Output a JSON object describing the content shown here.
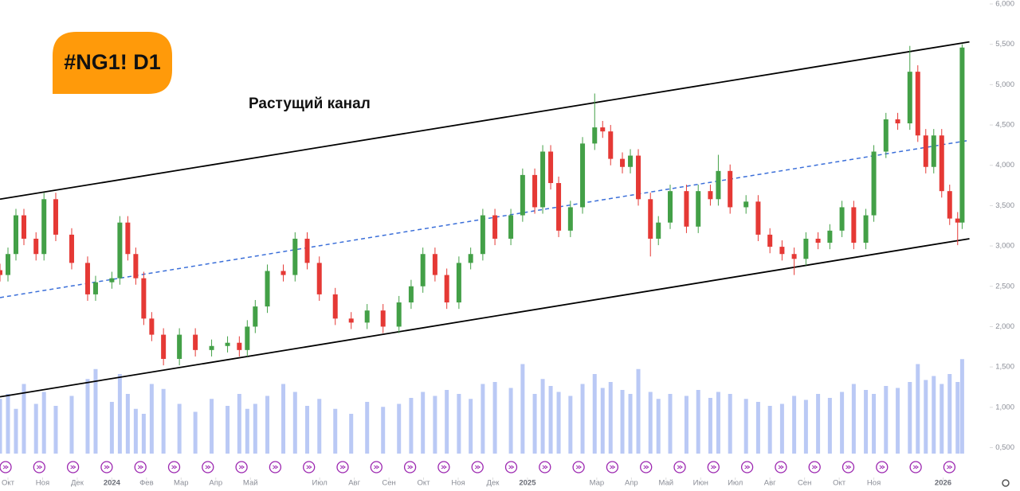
{
  "chart_data": {
    "type": "candlestick",
    "symbol_label": "#NG1! D1",
    "annotation": "Растущий канал",
    "up_color": "#43a047",
    "down_color": "#e53935",
    "candles": [
      [
        -0.23,
        2.7,
        2.78,
        2.56,
        2.64
      ],
      [
        0,
        2.64,
        2.98,
        2.56,
        2.9
      ],
      [
        0.23,
        2.9,
        3.46,
        2.82,
        3.38
      ],
      [
        0.46,
        3.38,
        3.46,
        3.01,
        3.09
      ],
      [
        0.81,
        3.09,
        3.17,
        2.82,
        2.9
      ],
      [
        1.04,
        2.9,
        3.66,
        2.82,
        3.58
      ],
      [
        1.38,
        3.58,
        3.66,
        3.06,
        3.14
      ],
      [
        1.84,
        3.14,
        3.22,
        2.71,
        2.79
      ],
      [
        2.3,
        2.79,
        2.87,
        2.32,
        2.4
      ],
      [
        2.53,
        2.4,
        2.63,
        2.32,
        2.55
      ],
      [
        3.0,
        2.55,
        2.68,
        2.47,
        2.6
      ],
      [
        3.23,
        2.6,
        3.37,
        2.52,
        3.29
      ],
      [
        3.46,
        3.29,
        3.37,
        2.82,
        2.9
      ],
      [
        3.69,
        2.9,
        2.98,
        2.52,
        2.6
      ],
      [
        3.92,
        2.6,
        2.68,
        2.02,
        2.1
      ],
      [
        4.15,
        2.1,
        2.18,
        1.82,
        1.9
      ],
      [
        4.49,
        1.9,
        1.98,
        1.52,
        1.6
      ],
      [
        4.95,
        1.6,
        1.98,
        1.52,
        1.9
      ],
      [
        5.41,
        1.9,
        1.98,
        1.63,
        1.71
      ],
      [
        5.88,
        1.71,
        1.84,
        1.63,
        1.76
      ],
      [
        6.34,
        1.76,
        1.88,
        1.68,
        1.8
      ],
      [
        6.68,
        1.8,
        1.88,
        1.63,
        1.71
      ],
      [
        6.91,
        1.71,
        2.08,
        1.63,
        2.0
      ],
      [
        7.14,
        2.0,
        2.33,
        1.92,
        2.25
      ],
      [
        7.49,
        2.25,
        2.77,
        2.17,
        2.69
      ],
      [
        7.95,
        2.69,
        2.77,
        2.56,
        2.64
      ],
      [
        8.29,
        2.64,
        3.17,
        2.56,
        3.09
      ],
      [
        8.64,
        3.09,
        3.17,
        2.71,
        2.79
      ],
      [
        8.99,
        2.79,
        2.87,
        2.32,
        2.4
      ],
      [
        9.45,
        2.4,
        2.48,
        2.02,
        2.1
      ],
      [
        9.91,
        2.1,
        2.18,
        1.97,
        2.05
      ],
      [
        10.37,
        2.05,
        2.28,
        1.97,
        2.2
      ],
      [
        10.83,
        2.2,
        2.28,
        1.92,
        2.0
      ],
      [
        11.29,
        2.0,
        2.38,
        1.92,
        2.3
      ],
      [
        11.64,
        2.3,
        2.58,
        2.22,
        2.5
      ],
      [
        11.98,
        2.5,
        2.98,
        2.42,
        2.9
      ],
      [
        12.33,
        2.9,
        2.98,
        2.56,
        2.64
      ],
      [
        12.67,
        2.64,
        2.72,
        2.22,
        2.3
      ],
      [
        13.02,
        2.3,
        2.87,
        2.22,
        2.79
      ],
      [
        13.36,
        2.79,
        2.98,
        2.71,
        2.9
      ],
      [
        13.71,
        2.9,
        3.46,
        2.82,
        3.38
      ],
      [
        14.06,
        3.38,
        3.46,
        3.01,
        3.09
      ],
      [
        14.52,
        3.09,
        3.46,
        3.01,
        3.38
      ],
      [
        14.86,
        3.38,
        3.96,
        3.3,
        3.88
      ],
      [
        15.21,
        3.88,
        3.96,
        3.4,
        3.48
      ],
      [
        15.44,
        3.48,
        4.25,
        3.4,
        4.17
      ],
      [
        15.67,
        4.17,
        4.25,
        3.7,
        3.78
      ],
      [
        15.9,
        3.78,
        3.86,
        3.11,
        3.19
      ],
      [
        16.24,
        3.19,
        3.56,
        3.11,
        3.48
      ],
      [
        16.59,
        3.48,
        4.35,
        3.4,
        4.27
      ],
      [
        16.94,
        4.27,
        4.89,
        4.19,
        4.47
      ],
      [
        17.17,
        4.47,
        4.55,
        4.34,
        4.42
      ],
      [
        17.4,
        4.42,
        4.5,
        4.0,
        4.08
      ],
      [
        17.74,
        4.08,
        4.16,
        3.9,
        3.98
      ],
      [
        17.97,
        3.98,
        4.2,
        3.9,
        4.12
      ],
      [
        18.2,
        4.12,
        4.2,
        3.5,
        3.58
      ],
      [
        18.55,
        3.58,
        3.66,
        2.87,
        3.09
      ],
      [
        18.78,
        3.09,
        3.37,
        3.01,
        3.29
      ],
      [
        19.12,
        3.29,
        3.76,
        3.21,
        3.68
      ],
      [
        19.59,
        3.68,
        3.76,
        3.16,
        3.24
      ],
      [
        19.93,
        3.24,
        3.76,
        3.16,
        3.68
      ],
      [
        20.28,
        3.68,
        3.76,
        3.5,
        3.58
      ],
      [
        20.51,
        3.58,
        4.13,
        3.5,
        3.93
      ],
      [
        20.85,
        3.93,
        4.01,
        3.4,
        3.48
      ],
      [
        21.31,
        3.48,
        3.63,
        3.4,
        3.55
      ],
      [
        21.66,
        3.55,
        3.63,
        3.06,
        3.14
      ],
      [
        22.0,
        3.14,
        3.22,
        2.91,
        2.99
      ],
      [
        22.35,
        2.99,
        3.07,
        2.82,
        2.9
      ],
      [
        22.7,
        2.9,
        2.98,
        2.64,
        2.84
      ],
      [
        23.04,
        2.84,
        3.17,
        2.76,
        3.09
      ],
      [
        23.39,
        3.09,
        3.17,
        2.96,
        3.04
      ],
      [
        23.73,
        3.04,
        3.27,
        2.96,
        3.19
      ],
      [
        24.08,
        3.19,
        3.56,
        3.11,
        3.48
      ],
      [
        24.42,
        3.48,
        3.56,
        2.96,
        3.04
      ],
      [
        24.77,
        3.04,
        3.46,
        2.96,
        3.38
      ],
      [
        25.0,
        3.38,
        4.25,
        3.3,
        4.17
      ],
      [
        25.35,
        4.17,
        4.65,
        4.09,
        4.57
      ],
      [
        25.69,
        4.57,
        4.65,
        4.44,
        4.52
      ],
      [
        26.04,
        4.52,
        5.48,
        4.44,
        5.16
      ],
      [
        26.27,
        5.16,
        5.24,
        4.29,
        4.37
      ],
      [
        26.5,
        4.37,
        4.45,
        3.9,
        3.98
      ],
      [
        26.73,
        3.98,
        4.45,
        3.9,
        4.37
      ],
      [
        26.96,
        4.37,
        4.45,
        3.6,
        3.68
      ],
      [
        27.19,
        3.68,
        3.76,
        3.26,
        3.34
      ],
      [
        27.42,
        3.34,
        3.42,
        3.01,
        3.29
      ],
      [
        27.55,
        3.29,
        5.5,
        3.21,
        5.46
      ]
    ],
    "volume": {
      "color": "#a9bcf2",
      "ylim": [
        0,
        100
      ],
      "values": [
        55,
        60,
        45,
        70,
        50,
        62,
        48,
        58,
        75,
        85,
        52,
        80,
        60,
        45,
        40,
        70,
        65,
        50,
        42,
        55,
        48,
        60,
        45,
        50,
        58,
        70,
        62,
        48,
        55,
        45,
        40,
        52,
        47,
        50,
        56,
        62,
        58,
        64,
        60,
        55,
        70,
        72,
        66,
        90,
        60,
        75,
        68,
        62,
        58,
        70,
        80,
        66,
        72,
        64,
        60,
        85,
        62,
        55,
        60,
        58,
        64,
        56,
        62,
        60,
        55,
        52,
        48,
        50,
        58,
        54,
        60,
        56,
        62,
        70,
        64,
        60,
        68,
        66,
        72,
        90,
        74,
        78,
        70,
        80,
        72,
        95
      ]
    },
    "channel": {
      "color": "#000000",
      "mid_color": "#3b6fd9",
      "upper": [
        [
          -0.23,
          3.58
        ],
        [
          27.76,
          5.53
        ]
      ],
      "lower": [
        [
          -0.23,
          1.13
        ],
        [
          27.76,
          3.09
        ]
      ],
      "middle": [
        [
          -0.23,
          2.36
        ],
        [
          27.76,
          4.31
        ]
      ]
    },
    "xlim": [
      -0.23,
      28.3
    ],
    "xticks": [
      {
        "value": 0,
        "label": "Окт"
      },
      {
        "value": 1,
        "label": "Ноя"
      },
      {
        "value": 2,
        "label": "Дек"
      },
      {
        "value": 3,
        "label": "2024"
      },
      {
        "value": 4,
        "label": "Фев"
      },
      {
        "value": 5,
        "label": "Мар"
      },
      {
        "value": 6,
        "label": "Апр"
      },
      {
        "value": 7,
        "label": "Май"
      },
      {
        "value": 9,
        "label": "Июл"
      },
      {
        "value": 10,
        "label": "Авг"
      },
      {
        "value": 11,
        "label": "Сен"
      },
      {
        "value": 12,
        "label": "Окт"
      },
      {
        "value": 13,
        "label": "Ноя"
      },
      {
        "value": 14,
        "label": "Дек"
      },
      {
        "value": 15,
        "label": "2025"
      },
      {
        "value": 17,
        "label": "Мар"
      },
      {
        "value": 18,
        "label": "Апр"
      },
      {
        "value": 19,
        "label": "Май"
      },
      {
        "value": 20,
        "label": "Июн"
      },
      {
        "value": 21,
        "label": "Июл"
      },
      {
        "value": 22,
        "label": "Авг"
      },
      {
        "value": 23,
        "label": "Сен"
      },
      {
        "value": 24,
        "label": "Окт"
      },
      {
        "value": 25,
        "label": "Ноя"
      },
      {
        "value": 27,
        "label": "2026"
      }
    ],
    "ylim": [
      0.13,
      6.0
    ],
    "yticks": [
      {
        "value": 6,
        "label": "6,000"
      },
      {
        "value": 5.5,
        "label": "5,500"
      },
      {
        "value": 5,
        "label": "5,000"
      },
      {
        "value": 4.5,
        "label": "4,500"
      },
      {
        "value": 4,
        "label": "4,000"
      },
      {
        "value": 3.5,
        "label": "3,500"
      },
      {
        "value": 3,
        "label": "3,000"
      },
      {
        "value": 2.5,
        "label": "2,500"
      },
      {
        "value": 2,
        "label": "2,000"
      },
      {
        "value": 1.5,
        "label": "1,500"
      },
      {
        "value": 1,
        "label": "1,000"
      },
      {
        "value": 0.5,
        "label": "0,500"
      }
    ]
  }
}
